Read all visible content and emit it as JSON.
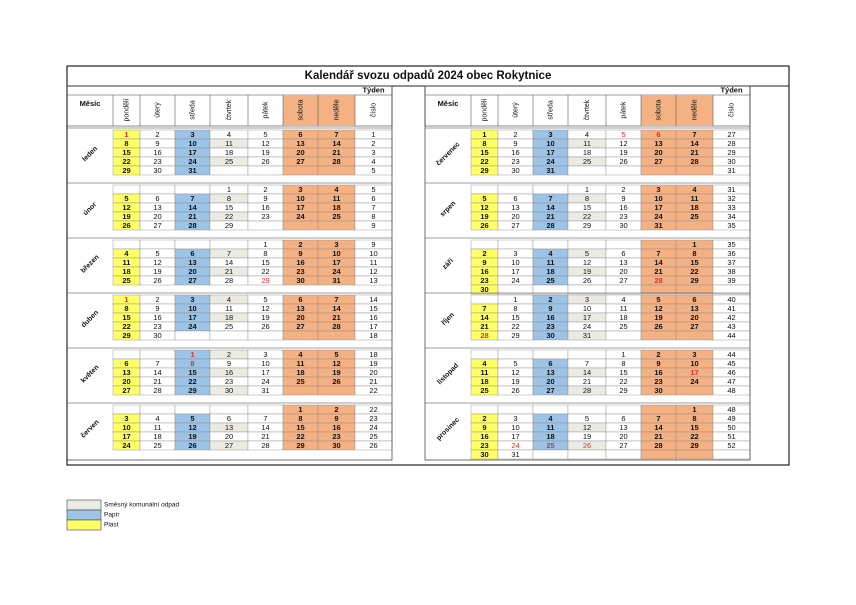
{
  "title": "Kalendář svozu odpadů 2024 obec Rokytnice",
  "headers": {
    "month": "Měsíc",
    "days": [
      "pondělí",
      "úterý",
      "středa",
      "čtvrtek",
      "pátek",
      "sobota",
      "neděle"
    ],
    "week_group": "Týden",
    "week": "číslo"
  },
  "months": [
    {
      "name": "leden",
      "red": [
        1
      ],
      "weeks": [
        [
          1,
          2,
          3,
          4,
          5,
          6,
          7,
          1
        ],
        [
          8,
          9,
          10,
          11,
          12,
          13,
          14,
          2
        ],
        [
          15,
          16,
          17,
          18,
          19,
          20,
          21,
          3
        ],
        [
          22,
          23,
          24,
          25,
          26,
          27,
          28,
          4
        ],
        [
          29,
          30,
          31,
          null,
          null,
          null,
          null,
          5
        ]
      ]
    },
    {
      "name": "únor",
      "red": [],
      "weeks": [
        [
          null,
          null,
          null,
          1,
          2,
          3,
          4,
          5
        ],
        [
          5,
          6,
          7,
          8,
          9,
          10,
          11,
          6
        ],
        [
          12,
          13,
          14,
          15,
          16,
          17,
          18,
          7
        ],
        [
          19,
          20,
          21,
          22,
          23,
          24,
          25,
          8
        ],
        [
          26,
          27,
          28,
          29,
          null,
          null,
          null,
          9
        ]
      ]
    },
    {
      "name": "březen",
      "red": [
        29
      ],
      "weeks": [
        [
          null,
          null,
          null,
          null,
          1,
          2,
          3,
          9
        ],
        [
          4,
          5,
          6,
          7,
          8,
          9,
          10,
          10
        ],
        [
          11,
          12,
          13,
          14,
          15,
          16,
          17,
          11
        ],
        [
          18,
          19,
          20,
          21,
          22,
          23,
          24,
          12
        ],
        [
          25,
          26,
          27,
          28,
          29,
          30,
          31,
          13
        ]
      ]
    },
    {
      "name": "duben",
      "red": [
        1
      ],
      "weeks": [
        [
          1,
          2,
          3,
          4,
          5,
          6,
          7,
          14
        ],
        [
          8,
          9,
          10,
          11,
          12,
          13,
          14,
          15
        ],
        [
          15,
          16,
          17,
          18,
          19,
          20,
          21,
          16
        ],
        [
          22,
          23,
          24,
          25,
          26,
          27,
          28,
          17
        ],
        [
          29,
          30,
          null,
          null,
          null,
          null,
          null,
          18
        ]
      ]
    },
    {
      "name": "květen",
      "red": [
        1,
        8
      ],
      "weeks": [
        [
          null,
          null,
          1,
          2,
          3,
          4,
          5,
          18
        ],
        [
          6,
          7,
          8,
          9,
          10,
          11,
          12,
          19
        ],
        [
          13,
          14,
          15,
          16,
          17,
          18,
          19,
          20
        ],
        [
          20,
          21,
          22,
          23,
          24,
          25,
          26,
          21
        ],
        [
          27,
          28,
          29,
          30,
          31,
          null,
          null,
          22
        ]
      ]
    },
    {
      "name": "červen",
      "red": [],
      "weeks": [
        [
          null,
          null,
          null,
          null,
          null,
          1,
          2,
          22
        ],
        [
          3,
          4,
          5,
          6,
          7,
          8,
          9,
          23
        ],
        [
          10,
          11,
          12,
          13,
          14,
          15,
          16,
          24
        ],
        [
          17,
          18,
          19,
          20,
          21,
          22,
          23,
          25
        ],
        [
          24,
          25,
          26,
          27,
          28,
          29,
          30,
          26
        ]
      ]
    },
    {
      "name": "červenec",
      "red": [
        5,
        6
      ],
      "weeks": [
        [
          1,
          2,
          3,
          4,
          5,
          6,
          7,
          27
        ],
        [
          8,
          9,
          10,
          11,
          12,
          13,
          14,
          28
        ],
        [
          15,
          16,
          17,
          18,
          19,
          20,
          21,
          29
        ],
        [
          22,
          23,
          24,
          25,
          26,
          27,
          28,
          30
        ],
        [
          29,
          30,
          31,
          null,
          null,
          null,
          null,
          31
        ]
      ]
    },
    {
      "name": "srpen",
      "red": [],
      "weeks": [
        [
          null,
          null,
          null,
          1,
          2,
          3,
          4,
          31
        ],
        [
          5,
          6,
          7,
          8,
          9,
          10,
          11,
          32
        ],
        [
          12,
          13,
          14,
          15,
          16,
          17,
          18,
          33
        ],
        [
          19,
          20,
          21,
          22,
          23,
          24,
          25,
          34
        ],
        [
          26,
          27,
          28,
          29,
          30,
          31,
          null,
          35
        ]
      ]
    },
    {
      "name": "září",
      "red": [
        28
      ],
      "weeks": [
        [
          null,
          null,
          null,
          null,
          null,
          null,
          1,
          35
        ],
        [
          2,
          3,
          4,
          5,
          6,
          7,
          8,
          36
        ],
        [
          9,
          10,
          11,
          12,
          13,
          14,
          15,
          37
        ],
        [
          16,
          17,
          18,
          19,
          20,
          21,
          22,
          38
        ],
        [
          23,
          24,
          25,
          26,
          27,
          28,
          29,
          39
        ],
        [
          30,
          null,
          null,
          null,
          null,
          null,
          null,
          null
        ]
      ]
    },
    {
      "name": "říjen",
      "red": [
        28
      ],
      "weeks": [
        [
          null,
          1,
          2,
          3,
          4,
          5,
          6,
          40
        ],
        [
          7,
          8,
          9,
          10,
          11,
          12,
          13,
          41
        ],
        [
          14,
          15,
          16,
          17,
          18,
          19,
          20,
          42
        ],
        [
          21,
          22,
          23,
          24,
          25,
          26,
          27,
          43
        ],
        [
          28,
          29,
          30,
          31,
          null,
          null,
          null,
          44
        ]
      ]
    },
    {
      "name": "listopad",
      "red": [
        17
      ],
      "weeks": [
        [
          null,
          null,
          null,
          null,
          1,
          2,
          3,
          44
        ],
        [
          4,
          5,
          6,
          7,
          8,
          9,
          10,
          45
        ],
        [
          11,
          12,
          13,
          14,
          15,
          16,
          17,
          46
        ],
        [
          18,
          19,
          20,
          21,
          22,
          23,
          24,
          47
        ],
        [
          25,
          26,
          27,
          28,
          29,
          30,
          null,
          48
        ]
      ]
    },
    {
      "name": "prosinec",
      "red": [
        24,
        25,
        26
      ],
      "weeks": [
        [
          null,
          null,
          null,
          null,
          null,
          null,
          1,
          48
        ],
        [
          2,
          3,
          4,
          5,
          6,
          7,
          8,
          49
        ],
        [
          9,
          10,
          11,
          12,
          13,
          14,
          15,
          50
        ],
        [
          16,
          17,
          18,
          19,
          20,
          21,
          22,
          51
        ],
        [
          23,
          24,
          25,
          26,
          27,
          28,
          29,
          52
        ],
        [
          30,
          31,
          null,
          null,
          null,
          null,
          null,
          null
        ]
      ]
    }
  ],
  "legend": [
    "Směsný komunální odpad",
    "Papír",
    "Plast"
  ]
}
